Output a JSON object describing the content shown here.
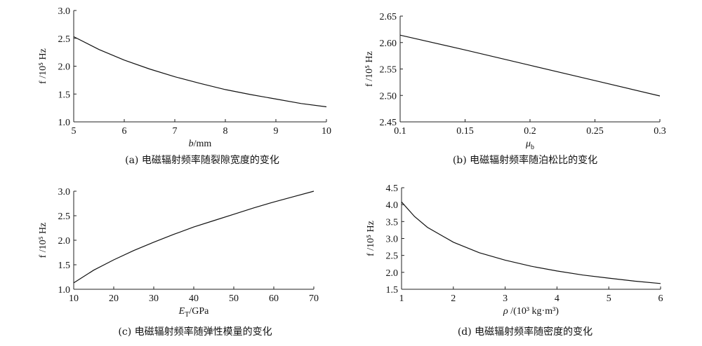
{
  "chart_data": [
    {
      "type": "line",
      "caption": "(a) 电磁辐射频率随裂隙宽度的变化",
      "xlabel_main": "b",
      "xlabel_rest": "/mm",
      "ylabel": "f /10⁵ Hz",
      "xlim": [
        5,
        10
      ],
      "ylim": [
        1.0,
        3.0
      ],
      "xticks": [
        5,
        6,
        7,
        8,
        9,
        10
      ],
      "yticks": [
        1.0,
        1.5,
        2.0,
        2.5,
        3.0
      ],
      "x": [
        5,
        5.5,
        6,
        6.5,
        7,
        7.5,
        8,
        8.5,
        9,
        9.5,
        10
      ],
      "y": [
        2.53,
        2.3,
        2.11,
        1.95,
        1.81,
        1.69,
        1.58,
        1.49,
        1.41,
        1.33,
        1.27
      ]
    },
    {
      "type": "line",
      "caption": "(b) 电磁辐射频率随泊松比的变化",
      "xlabel_main": "μ",
      "xlabel_sub": "b",
      "xlabel_rest": "",
      "ylabel": "f /10⁵ Hz",
      "xlim": [
        0.1,
        0.3
      ],
      "ylim": [
        2.45,
        2.65
      ],
      "xticks": [
        0.1,
        0.15,
        0.2,
        0.25,
        0.3
      ],
      "yticks": [
        2.45,
        2.5,
        2.55,
        2.6,
        2.65
      ],
      "x": [
        0.1,
        0.15,
        0.2,
        0.25,
        0.3
      ],
      "y": [
        2.614,
        2.586,
        2.557,
        2.528,
        2.499
      ]
    },
    {
      "type": "line",
      "caption": "(c) 电磁辐射频率随弹性模量的变化",
      "xlabel_main": "E",
      "xlabel_sub": "T",
      "xlabel_rest": "/GPa",
      "ylabel": "f /10⁵ Hz",
      "xlim": [
        10,
        70
      ],
      "ylim": [
        1.0,
        3.0
      ],
      "xticks": [
        10,
        20,
        30,
        40,
        50,
        60,
        70
      ],
      "yticks": [
        1.0,
        1.5,
        2.0,
        2.5,
        3.0
      ],
      "x": [
        10,
        15,
        20,
        25,
        30,
        35,
        40,
        45,
        50,
        55,
        60,
        65,
        70
      ],
      "y": [
        1.13,
        1.39,
        1.6,
        1.79,
        1.96,
        2.12,
        2.27,
        2.4,
        2.53,
        2.66,
        2.78,
        2.89,
        3.0
      ]
    },
    {
      "type": "line",
      "caption": "(d) 电磁辐射频率随密度的变化",
      "xlabel_main": "ρ",
      "xlabel_rest": " /(10³ kg·m³)",
      "ylabel": "f /10⁵ Hz",
      "xlim": [
        1,
        6
      ],
      "ylim": [
        1.5,
        4.5
      ],
      "xticks": [
        1,
        2,
        3,
        4,
        5,
        6
      ],
      "yticks": [
        1.5,
        2.0,
        2.5,
        3.0,
        3.5,
        4.0,
        4.5
      ],
      "x": [
        1,
        1.25,
        1.5,
        2,
        2.5,
        3,
        3.5,
        4,
        4.5,
        5,
        5.5,
        6
      ],
      "y": [
        4.08,
        3.65,
        3.33,
        2.89,
        2.58,
        2.36,
        2.18,
        2.04,
        1.92,
        1.83,
        1.74,
        1.67
      ]
    }
  ]
}
